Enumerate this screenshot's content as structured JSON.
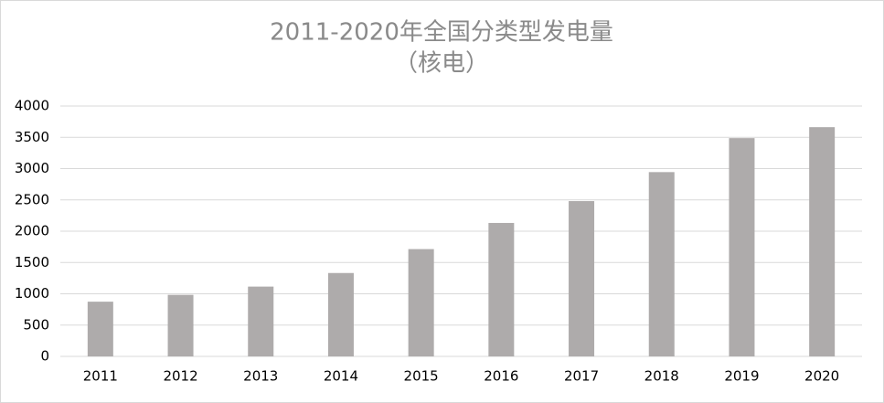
{
  "chart_data": {
    "type": "bar",
    "title": "2011-2020年全国分类型发电量",
    "subtitle": "（核电）",
    "categories": [
      "2011",
      "2012",
      "2013",
      "2014",
      "2015",
      "2016",
      "2017",
      "2018",
      "2019",
      "2020"
    ],
    "values": [
      874,
      983,
      1115,
      1332,
      1714,
      2132,
      2481,
      2944,
      3487,
      3662
    ],
    "color": "#aeabab",
    "ylim": [
      0,
      4000
    ],
    "yticks": [
      0,
      500,
      1000,
      1500,
      2000,
      2500,
      3000,
      3500,
      4000
    ],
    "grid": true
  }
}
